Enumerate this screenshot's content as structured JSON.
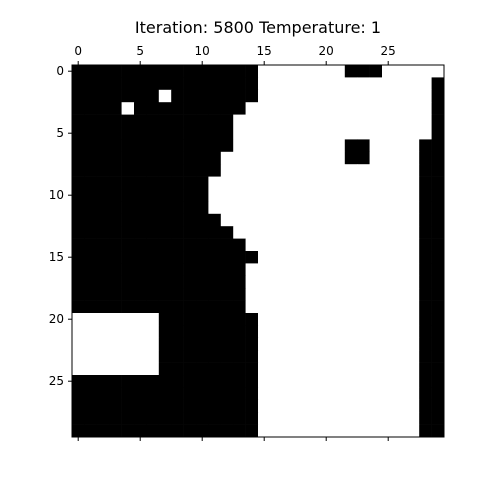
{
  "chart_data": {
    "type": "heatmap",
    "title": "Iteration: 5800 Temperature: 1",
    "xlabel": "",
    "ylabel": "",
    "x_ticks": [
      0,
      5,
      10,
      15,
      20,
      25
    ],
    "y_ticks": [
      0,
      5,
      10,
      15,
      20,
      25
    ],
    "x_axis_position": "top-and-bottom (labels on top)",
    "grid": false,
    "colors": {
      "1": "#000000",
      "0": "#ffffff"
    },
    "rows": 30,
    "cols": 30,
    "grid_data": [
      "111111111111111000000011100000",
      "111111111111111000000000000001",
      "111111101111111000000000000001",
      "111101111111110000000000000001",
      "111111111111100000000000000001",
      "111111111111100000000000000001",
      "111111111111100000000011000011",
      "111111111111000000000011000011",
      "111111111111000000000000000011",
      "111111111110000000000000000011",
      "111111111110000000000000000011",
      "111111111110000000000000000011",
      "111111111111000000000000000011",
      "111111111111100000000000000011",
      "111111111111110000000000000011",
      "111111111111111000000000000011",
      "111111111111110000000000000011",
      "111111111111110000000000000011",
      "111111111111110000000000000011",
      "111111111111110000000000000011",
      "000000011111111000000000000011",
      "000000011111111000000000000011",
      "000000011111111000000000000011",
      "000000011111111000000000000011",
      "000000011111111000000000000011",
      "111111111111111000000000000011",
      "111111111111111000000000000011",
      "111111111111111000000000000011",
      "111111111111111000000000000011",
      "111111111111111000000000000011"
    ]
  }
}
